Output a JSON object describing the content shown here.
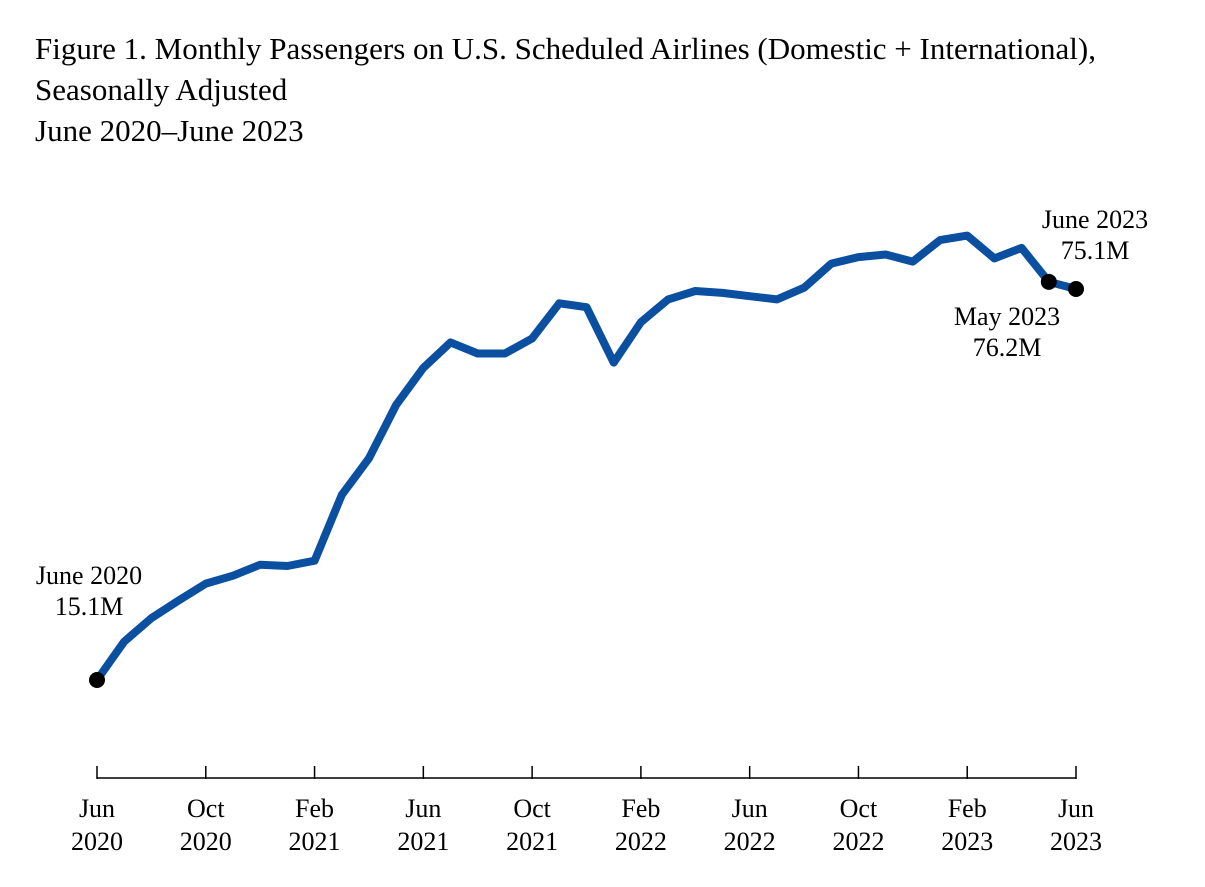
{
  "chart_data": {
    "type": "line",
    "title_lines": [
      "Figure 1. Monthly Passengers on U.S. Scheduled Airlines (Domestic + International),",
      "Seasonally Adjusted",
      "June 2020–June 2023"
    ],
    "xlabel": "",
    "ylabel": "",
    "x_ticks": [
      {
        "month": "Jun",
        "year": "2020",
        "index": 0
      },
      {
        "month": "Oct",
        "year": "2020",
        "index": 4
      },
      {
        "month": "Feb",
        "year": "2021",
        "index": 8
      },
      {
        "month": "Jun",
        "year": "2021",
        "index": 12
      },
      {
        "month": "Oct",
        "year": "2021",
        "index": 16
      },
      {
        "month": "Feb",
        "year": "2022",
        "index": 20
      },
      {
        "month": "Jun",
        "year": "2022",
        "index": 24
      },
      {
        "month": "Oct",
        "year": "2022",
        "index": 28
      },
      {
        "month": "Feb",
        "year": "2023",
        "index": 32
      },
      {
        "month": "Jun",
        "year": "2023",
        "index": 36
      }
    ],
    "grid": false,
    "y_axis_shown": false,
    "series": [
      {
        "color": "#0b4fa0",
        "x": [
          "2020-06",
          "2020-07",
          "2020-08",
          "2020-09",
          "2020-10",
          "2020-11",
          "2020-12",
          "2021-01",
          "2021-02",
          "2021-03",
          "2021-04",
          "2021-05",
          "2021-06",
          "2021-07",
          "2021-08",
          "2021-09",
          "2021-10",
          "2021-11",
          "2021-12",
          "2022-01",
          "2022-02",
          "2022-03",
          "2022-04",
          "2022-05",
          "2022-06",
          "2022-07",
          "2022-08",
          "2022-09",
          "2022-10",
          "2022-11",
          "2022-12",
          "2023-01",
          "2023-02",
          "2023-03",
          "2023-04",
          "2023-05",
          "2023-06"
        ],
        "values": [
          15.1,
          21.0,
          24.6,
          27.3,
          29.9,
          31.1,
          32.8,
          32.6,
          33.4,
          43.5,
          49.1,
          57.3,
          63.0,
          66.9,
          65.2,
          65.2,
          67.5,
          72.9,
          72.3,
          63.8,
          70.0,
          73.5,
          74.8,
          74.5,
          74.0,
          73.5,
          75.3,
          79.0,
          80.0,
          80.4,
          79.3,
          82.6,
          83.3,
          79.8,
          81.4,
          76.2,
          75.1
        ]
      }
    ],
    "marker_color": "#000000",
    "annotations": [
      {
        "index": 0,
        "lines": [
          "June 2020",
          "15.1M"
        ]
      },
      {
        "index": 35,
        "lines": [
          "May 2023",
          "76.2M"
        ]
      },
      {
        "index": 36,
        "lines": [
          "June 2023",
          "75.1M"
        ]
      }
    ]
  }
}
